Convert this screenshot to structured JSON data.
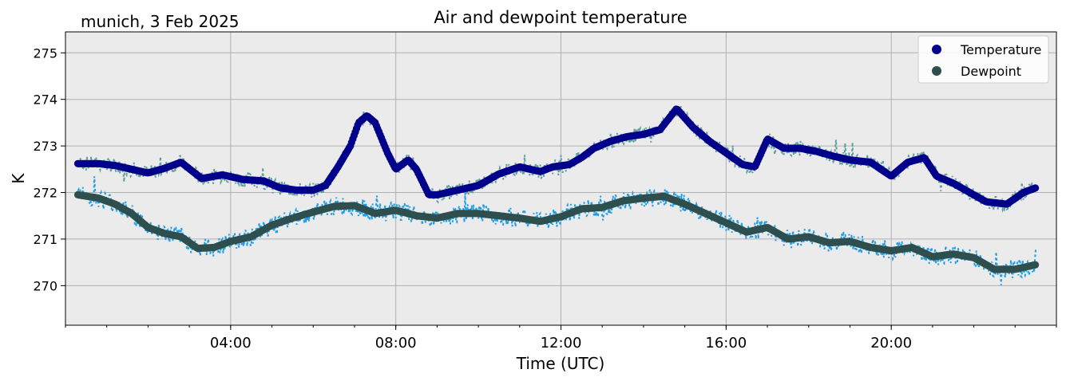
{
  "chart_data": {
    "type": "scatter",
    "title": "Air and dewpoint temperature",
    "subtitle": "munich, 3 Feb 2025",
    "xlabel": "Time (UTC)",
    "ylabel": "K",
    "x_unit": "hours (UTC)",
    "xlim": [
      0,
      24
    ],
    "ylim": [
      269.15,
      275.45
    ],
    "x_ticks": [
      {
        "value": 4,
        "label": "04:00"
      },
      {
        "value": 8,
        "label": "08:00"
      },
      {
        "value": 12,
        "label": "12:00"
      },
      {
        "value": 16,
        "label": "16:00"
      },
      {
        "value": 20,
        "label": "20:00"
      }
    ],
    "y_ticks": [
      270,
      271,
      272,
      273,
      274,
      275
    ],
    "grid": true,
    "legend_position": "top-right",
    "series": [
      {
        "name": "Temperature",
        "marker_color": "#00008b",
        "noise_color": "#5f9ea0",
        "x": [
          0.3,
          0.8,
          1.2,
          1.6,
          2.0,
          2.4,
          2.8,
          3.3,
          3.8,
          4.3,
          4.8,
          5.2,
          5.6,
          6.0,
          6.3,
          6.6,
          6.9,
          7.1,
          7.3,
          7.5,
          7.8,
          8.0,
          8.3,
          8.5,
          8.8,
          9.0,
          9.5,
          10.0,
          10.5,
          11.0,
          11.5,
          11.8,
          12.2,
          12.5,
          12.8,
          13.2,
          13.6,
          14.0,
          14.4,
          14.8,
          15.2,
          15.6,
          16.0,
          16.4,
          16.7,
          17.0,
          17.4,
          17.8,
          18.2,
          18.6,
          19.0,
          19.5,
          20.0,
          20.4,
          20.8,
          21.1,
          21.5,
          21.9,
          22.3,
          22.8,
          23.2,
          23.5
        ],
        "y": [
          272.62,
          272.62,
          272.58,
          272.5,
          272.42,
          272.52,
          272.65,
          272.3,
          272.38,
          272.28,
          272.25,
          272.1,
          272.05,
          272.05,
          272.15,
          272.55,
          273.0,
          273.5,
          273.65,
          273.5,
          272.85,
          272.5,
          272.7,
          272.5,
          271.95,
          271.95,
          272.05,
          272.15,
          272.4,
          272.55,
          272.45,
          272.55,
          272.6,
          272.75,
          272.95,
          273.1,
          273.2,
          273.25,
          273.35,
          273.8,
          273.4,
          273.1,
          272.85,
          272.6,
          272.55,
          273.15,
          272.95,
          272.95,
          272.88,
          272.78,
          272.7,
          272.65,
          272.35,
          272.65,
          272.75,
          272.35,
          272.2,
          272.0,
          271.8,
          271.75,
          272.0,
          272.1
        ]
      },
      {
        "name": "Dewpoint",
        "marker_color": "#2f4f4f",
        "noise_color": "#1e9ee6",
        "x": [
          0.3,
          0.8,
          1.2,
          1.6,
          2.0,
          2.4,
          2.8,
          3.2,
          3.6,
          4.0,
          4.5,
          5.0,
          5.5,
          6.0,
          6.5,
          7.0,
          7.5,
          8.0,
          8.5,
          9.0,
          9.5,
          10.0,
          10.5,
          11.0,
          11.5,
          12.0,
          12.5,
          13.0,
          13.5,
          14.0,
          14.5,
          15.0,
          15.5,
          16.0,
          16.5,
          17.0,
          17.5,
          18.0,
          18.5,
          19.0,
          19.5,
          20.0,
          20.5,
          21.0,
          21.5,
          22.0,
          22.5,
          23.0,
          23.5
        ],
        "y": [
          271.95,
          271.88,
          271.75,
          271.55,
          271.25,
          271.12,
          271.05,
          270.8,
          270.82,
          270.95,
          271.05,
          271.3,
          271.45,
          271.58,
          271.7,
          271.72,
          271.55,
          271.62,
          271.5,
          271.45,
          271.55,
          271.55,
          271.5,
          271.45,
          271.38,
          271.48,
          271.65,
          271.68,
          271.82,
          271.88,
          271.92,
          271.75,
          271.55,
          271.35,
          271.15,
          271.25,
          271.0,
          271.05,
          270.92,
          270.95,
          270.82,
          270.75,
          270.82,
          270.62,
          270.68,
          270.6,
          270.35,
          270.35,
          270.45
        ]
      }
    ]
  }
}
